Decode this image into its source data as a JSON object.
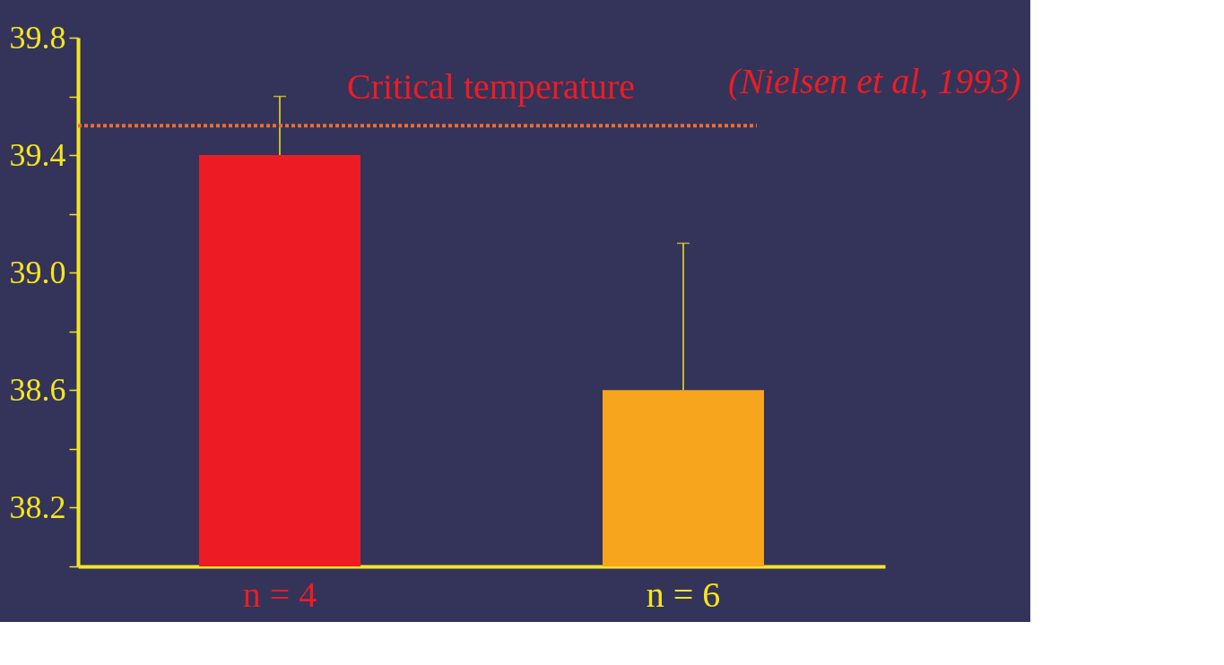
{
  "chart_data": {
    "type": "bar",
    "categories": [
      "n = 4",
      "n = 6"
    ],
    "values": [
      39.4,
      38.6
    ],
    "colors": [
      "#ed1c24",
      "#f6a51c"
    ],
    "errors": [
      [
        39.4,
        39.6
      ],
      [
        38.6,
        39.1
      ]
    ],
    "ylim": [
      38.0,
      39.8
    ],
    "yticks": [
      {
        "value": 38.0,
        "label": null
      },
      38.2,
      {
        "value": 38.4,
        "label": null
      },
      38.6,
      {
        "value": 38.8,
        "label": null
      },
      {
        "value": 39.0,
        "label": "39.0"
      },
      {
        "value": 39.2,
        "label": null
      },
      39.4,
      {
        "value": 39.6,
        "label": null
      },
      39.8
    ],
    "ref_lines": [
      {
        "axis": "y",
        "value": 39.5,
        "label": "Critical temperature",
        "color": "#f26b2a",
        "line_style": "dotted"
      }
    ],
    "annotations": [
      "(Nielsen et al, 1993)"
    ],
    "grid": false
  }
}
